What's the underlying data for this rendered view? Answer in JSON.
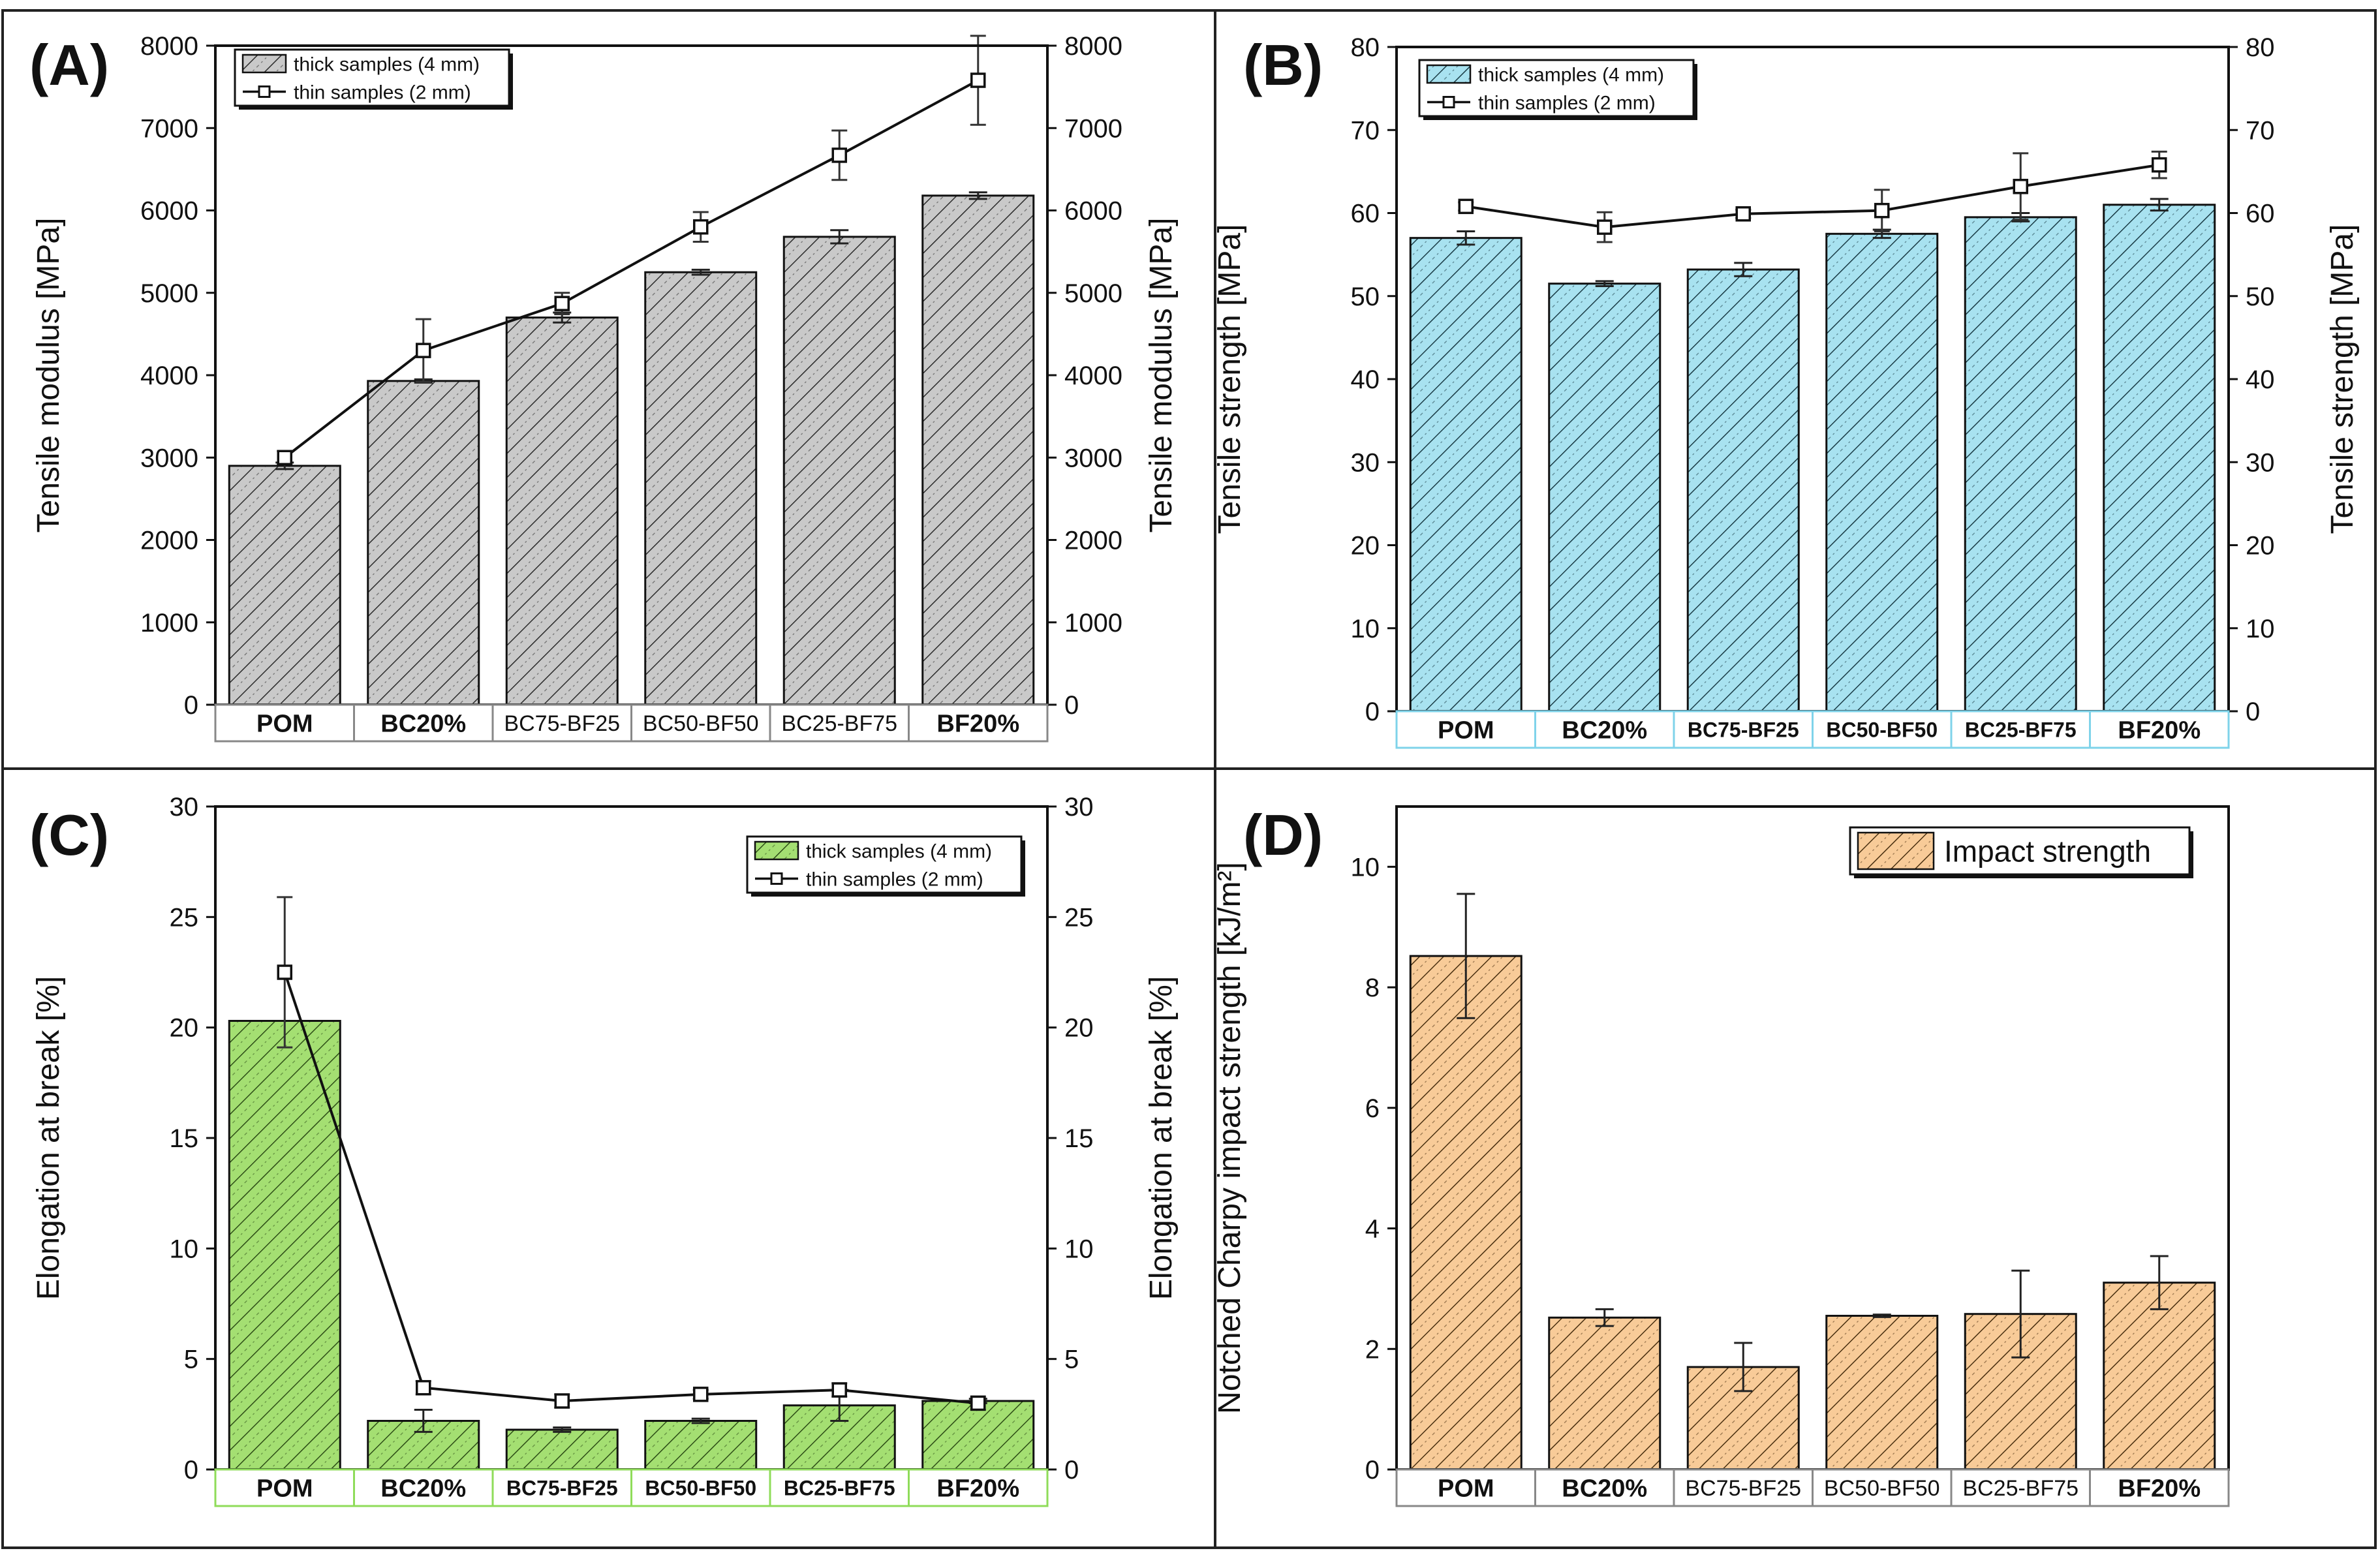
{
  "chart_data": [
    {
      "panel": "A",
      "label": "(A)",
      "type": "bar",
      "categories": [
        "POM",
        "BC20%",
        "BC75-BF25",
        "BC50-BF50",
        "BC25-BF75",
        "BF20%"
      ],
      "category_bold": [
        true,
        true,
        false,
        false,
        false,
        true
      ],
      "series": [
        {
          "name": "thick samples (4 mm)",
          "kind": "bar",
          "values": [
            2900,
            3930,
            4700,
            5250,
            5680,
            6180
          ],
          "errors": [
            40,
            20,
            60,
            30,
            80,
            40
          ]
        },
        {
          "name": "thin samples (2 mm)",
          "kind": "line",
          "values": [
            3000,
            4300,
            4870,
            5800,
            6670,
            7580
          ],
          "errors": [
            80,
            380,
            130,
            180,
            300,
            540
          ]
        }
      ],
      "ylabel": "Tensile modulus [MPa]",
      "ylabel_right": "Tensile modulus [MPa]",
      "ylim": [
        0,
        8000
      ],
      "yticks": [
        0,
        1000,
        2000,
        3000,
        4000,
        5000,
        6000,
        7000,
        8000
      ],
      "legend": "top-left",
      "colors": {
        "bar": "#c9c9c9",
        "hatch": "#2a2a2a",
        "line": "#111111"
      }
    },
    {
      "panel": "B",
      "label": "(B)",
      "type": "bar",
      "categories": [
        "POM",
        "BC20%",
        "BC75-BF25",
        "BC50-BF50",
        "BC25-BF75",
        "BF20%"
      ],
      "category_bold": [
        true,
        true,
        true,
        true,
        true,
        true
      ],
      "series": [
        {
          "name": "thick samples (4 mm)",
          "kind": "bar",
          "values": [
            57.0,
            51.5,
            53.2,
            57.5,
            59.5,
            61.0
          ],
          "errors": [
            0.8,
            0.3,
            0.8,
            0.5,
            0.5,
            0.7
          ]
        },
        {
          "name": "thin samples (2 mm)",
          "kind": "line",
          "values": [
            60.8,
            58.3,
            59.9,
            60.3,
            63.2,
            65.8
          ],
          "errors": [
            0.5,
            1.8,
            0.5,
            2.5,
            4.0,
            1.6
          ]
        }
      ],
      "ylabel": "Tensile strength [MPa]",
      "ylabel_right": "Tensile strength [MPa]",
      "ylim": [
        0,
        80
      ],
      "yticks": [
        0,
        10,
        20,
        30,
        40,
        50,
        60,
        70,
        80
      ],
      "legend": "top-left",
      "colors": {
        "bar": "#a8e2f0",
        "hatch": "#1a3c46",
        "line": "#111111"
      }
    },
    {
      "panel": "C",
      "label": "(C)",
      "type": "bar",
      "categories": [
        "POM",
        "BC20%",
        "BC75-BF25",
        "BC50-BF50",
        "BC25-BF75",
        "BF20%"
      ],
      "category_bold": [
        true,
        true,
        true,
        true,
        true,
        true
      ],
      "series": [
        {
          "name": "thick samples (4 mm)",
          "kind": "bar",
          "values": [
            20.3,
            2.2,
            1.8,
            2.2,
            2.9,
            3.1
          ],
          "errors": [
            0.0,
            0.5,
            0.1,
            0.1,
            0.7,
            0.1
          ]
        },
        {
          "name": "thin samples (2 mm)",
          "kind": "line",
          "values": [
            22.5,
            3.7,
            3.1,
            3.4,
            3.6,
            3.0
          ],
          "errors": [
            3.4,
            0.3,
            0.3,
            0.2,
            0.3,
            0.3
          ]
        }
      ],
      "ylabel": "Elongation at break [%]",
      "ylabel_right": "Elongation at break [%]",
      "ylim": [
        0,
        30
      ],
      "yticks": [
        0,
        5,
        10,
        15,
        20,
        25,
        30
      ],
      "legend": "top-right",
      "colors": {
        "bar": "#a4df72",
        "hatch": "#2d4d16",
        "line": "#111111"
      }
    },
    {
      "panel": "D",
      "label": "(D)",
      "type": "bar",
      "categories": [
        "POM",
        "BC20%",
        "BC75-BF25",
        "BC50-BF50",
        "BC25-BF75",
        "BF20%"
      ],
      "category_bold": [
        true,
        true,
        false,
        false,
        false,
        true
      ],
      "series": [
        {
          "name": "Impact strength",
          "kind": "bar",
          "values": [
            8.52,
            2.52,
            1.7,
            2.55,
            2.58,
            3.1
          ],
          "errors": [
            1.03,
            0.14,
            0.4,
            0.02,
            0.72,
            0.44
          ]
        }
      ],
      "ylabel": "Notched Charpy impact strength [kJ/m²]",
      "ylim": [
        0,
        11
      ],
      "yticks": [
        0,
        2,
        4,
        6,
        8,
        10
      ],
      "legend": "top-right",
      "colors": {
        "bar": "#f8cb98",
        "hatch": "#4a3010",
        "line": "#111111"
      }
    }
  ]
}
